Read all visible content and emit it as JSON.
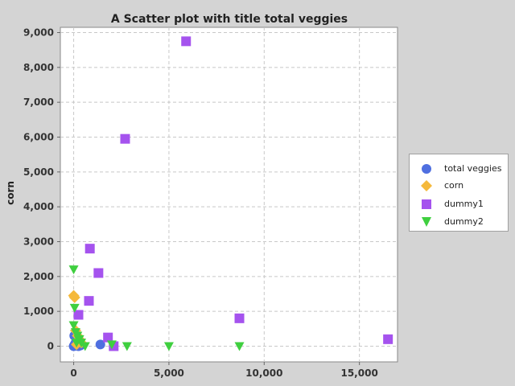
{
  "chart_data": {
    "type": "scatter",
    "title": "A Scatter plot with title total veggies",
    "xlabel": "",
    "ylabel": "corn",
    "xlim": [
      -700,
      17000
    ],
    "ylim": [
      -450,
      9150
    ],
    "x_ticks": [
      0,
      5000,
      10000,
      15000
    ],
    "x_tick_labels": [
      "0",
      "5,000",
      "10,000",
      "15,000"
    ],
    "y_ticks": [
      0,
      1000,
      2000,
      3000,
      4000,
      5000,
      6000,
      7000,
      8000,
      9000
    ],
    "y_tick_labels": [
      "0",
      "1,000",
      "2,000",
      "3,000",
      "4,000",
      "5,000",
      "6,000",
      "7,000",
      "8,000",
      "9,000"
    ],
    "grid": true,
    "legend_position": "right",
    "series": [
      {
        "name": "total veggies",
        "color": "#4f6fe0",
        "marker": "circle",
        "x": [
          0,
          50,
          100,
          150,
          200,
          250,
          300,
          350,
          30,
          120,
          1400
        ],
        "y": [
          0,
          50,
          100,
          30,
          200,
          0,
          80,
          20,
          300,
          350,
          50
        ]
      },
      {
        "name": "corn",
        "color": "#f5b93b",
        "marker": "diamond",
        "x": [
          0,
          50,
          100,
          200,
          300,
          400,
          150
        ],
        "y": [
          1450,
          1400,
          450,
          300,
          200,
          100,
          50
        ]
      },
      {
        "name": "dummy1",
        "color": "#a553ee",
        "marker": "square",
        "x": [
          5900,
          2700,
          850,
          1300,
          800,
          250,
          8700,
          16500,
          1800,
          2100
        ],
        "y": [
          8750,
          5950,
          2800,
          2100,
          1300,
          900,
          800,
          200,
          250,
          0
        ]
      },
      {
        "name": "dummy2",
        "color": "#3fcf3f",
        "marker": "triangle-down",
        "x": [
          0,
          50,
          0,
          100,
          200,
          300,
          400,
          600,
          2000,
          2800,
          5000,
          8700,
          150,
          250
        ],
        "y": [
          2200,
          1100,
          600,
          400,
          300,
          200,
          100,
          0,
          50,
          0,
          0,
          0,
          100,
          200
        ]
      }
    ]
  }
}
